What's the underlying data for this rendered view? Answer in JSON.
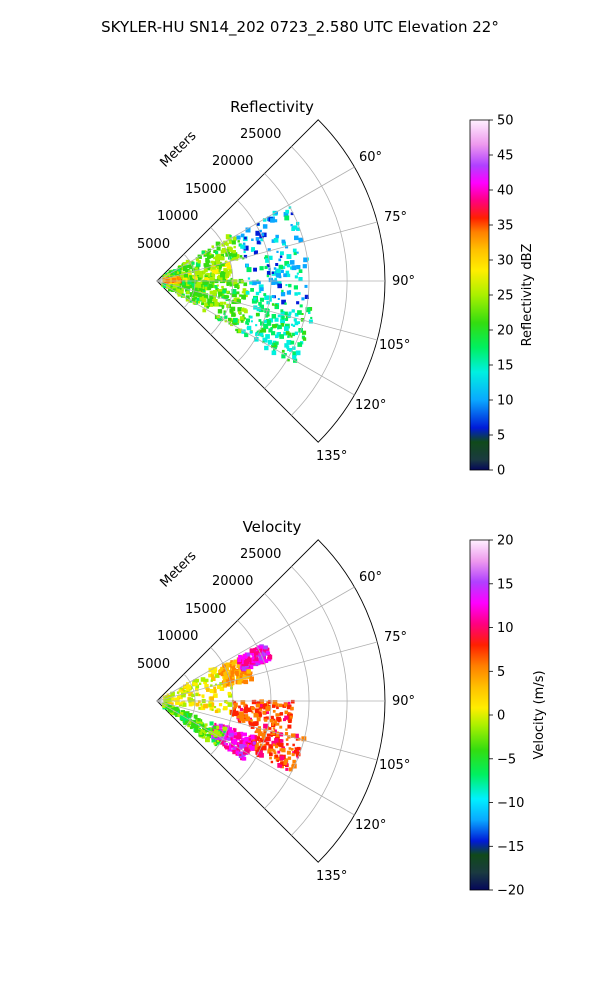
{
  "figure": {
    "suptitle": "SKYLER-HU  SN14_202  0723_2.580 UTC Elevation 22°"
  },
  "chart_data": [
    {
      "type": "heatmap",
      "projection": "polar-sector",
      "title": "Reflectivity",
      "radial_label": "Meters",
      "r_range": [
        0,
        30000
      ],
      "r_ticks": [
        "5000",
        "10000",
        "15000",
        "20000",
        "25000"
      ],
      "theta_range_deg": [
        45,
        135
      ],
      "theta_ticks": [
        "60°",
        "75°",
        "90°",
        "105°",
        "120°",
        "135°"
      ],
      "grid": true,
      "colorbar": {
        "label": "Reflectivity dBZ",
        "range": [
          0,
          50
        ],
        "ticks": [
          "0",
          "5",
          "10",
          "15",
          "20",
          "25",
          "30",
          "35",
          "40",
          "45",
          "50"
        ]
      },
      "regions": [
        {
          "azimuth_deg": [
            58,
            76
          ],
          "range_m": [
            1000,
            12000
          ],
          "value": 22
        },
        {
          "azimuth_deg": [
            76,
            90
          ],
          "range_m": [
            1000,
            10000
          ],
          "value": 24
        },
        {
          "azimuth_deg": [
            90,
            104
          ],
          "range_m": [
            1000,
            12000
          ],
          "value": 22
        },
        {
          "azimuth_deg": [
            104,
            122
          ],
          "range_m": [
            1000,
            13000
          ],
          "value": 22
        },
        {
          "azimuth_deg": [
            60,
            100
          ],
          "range_m": [
            12000,
            20000
          ],
          "value": 13
        },
        {
          "azimuth_deg": [
            100,
            122
          ],
          "range_m": [
            13000,
            21000
          ],
          "value": 17
        },
        {
          "azimuth_deg": [
            82,
            92
          ],
          "range_m": [
            1000,
            3000
          ],
          "value": 33
        }
      ]
    },
    {
      "type": "heatmap",
      "projection": "polar-sector",
      "title": "Velocity",
      "radial_label": "Meters",
      "r_range": [
        0,
        30000
      ],
      "r_ticks": [
        "5000",
        "10000",
        "15000",
        "20000",
        "25000"
      ],
      "theta_range_deg": [
        45,
        135
      ],
      "theta_ticks": [
        "60°",
        "75°",
        "90°",
        "105°",
        "120°",
        "135°"
      ],
      "grid": true,
      "colorbar": {
        "label": "Velocity (m/s)",
        "range": [
          -20,
          20
        ],
        "ticks": [
          "−20",
          "−15",
          "−10",
          "−5",
          "0",
          "5",
          "10",
          "15",
          "20"
        ]
      },
      "regions": [
        {
          "azimuth_deg": [
            60,
            100
          ],
          "range_m": [
            1000,
            10000
          ],
          "value": 1
        },
        {
          "azimuth_deg": [
            62,
            78
          ],
          "range_m": [
            9000,
            13000
          ],
          "value": 6
        },
        {
          "azimuth_deg": [
            62,
            70
          ],
          "range_m": [
            12000,
            16000
          ],
          "value": 14
        },
        {
          "azimuth_deg": [
            90,
            104
          ],
          "range_m": [
            10000,
            18000
          ],
          "value": 9
        },
        {
          "azimuth_deg": [
            104,
            118
          ],
          "range_m": [
            13000,
            20000
          ],
          "value": 9
        },
        {
          "azimuth_deg": [
            110,
            124
          ],
          "range_m": [
            8000,
            14000
          ],
          "value": 14
        },
        {
          "azimuth_deg": [
            112,
            128
          ],
          "range_m": [
            1000,
            10000
          ],
          "value": -4
        }
      ]
    }
  ]
}
